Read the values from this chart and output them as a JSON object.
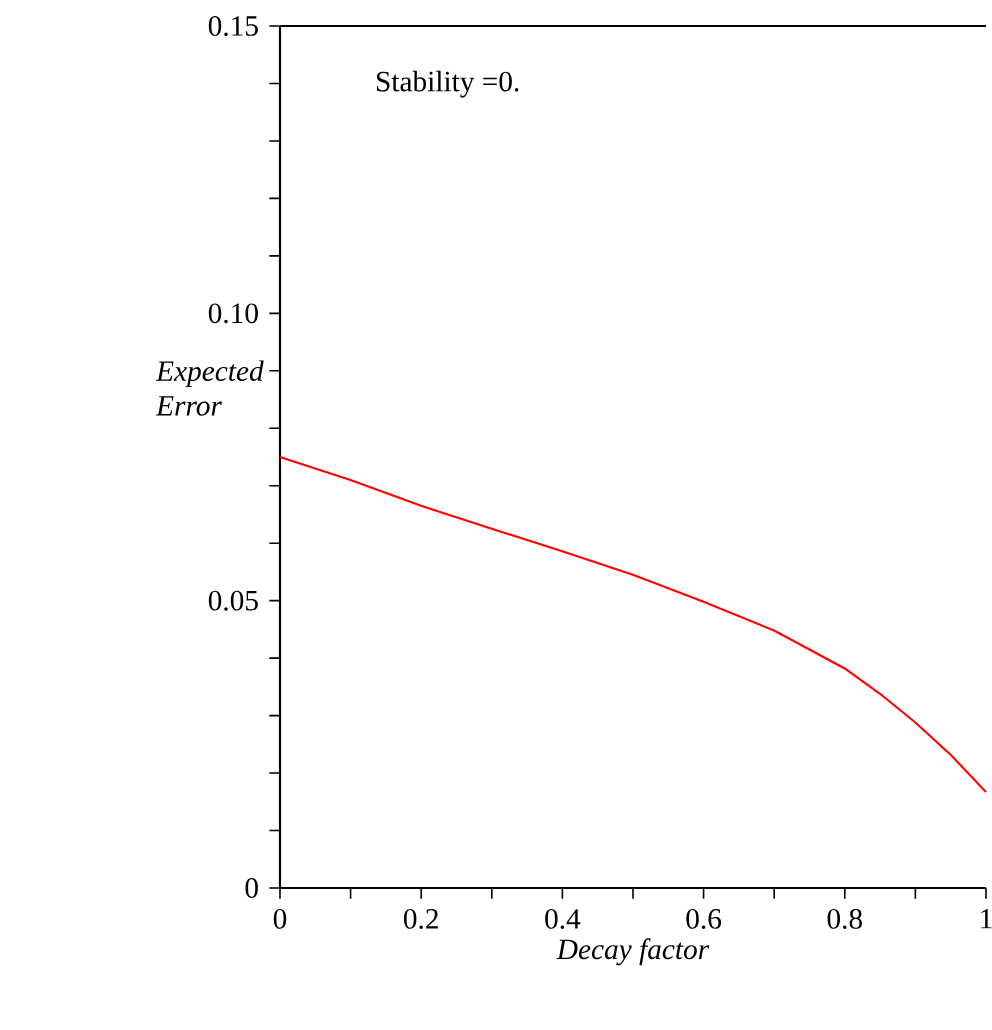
{
  "chart_data": {
    "type": "line",
    "xlabel": "Decay factor",
    "ylabel": "Expected Error",
    "annotations": [
      "Stability =0."
    ],
    "x": [
      0,
      0.1,
      0.2,
      0.3,
      0.4,
      0.5,
      0.6,
      0.7,
      0.8,
      0.85,
      0.9,
      0.95,
      1
    ],
    "series": [
      {
        "color": "#ff0000",
        "values": [
          0.075,
          0.071,
          0.0665,
          0.0625,
          0.0586,
          0.0545,
          0.0498,
          0.0448,
          0.0382,
          0.0338,
          0.0288,
          0.0232,
          0.0167
        ]
      }
    ],
    "xlim": [
      0,
      1
    ],
    "ylim": [
      0,
      0.15
    ],
    "xticks": [
      0,
      {
        "value": 0.1,
        "label": null
      },
      0.2,
      {
        "value": 0.3,
        "label": null
      },
      0.4,
      {
        "value": 0.5,
        "label": null
      },
      0.6,
      {
        "value": 0.7,
        "label": null
      },
      0.8,
      {
        "value": 0.9,
        "label": null
      },
      1
    ],
    "yticks": [
      0,
      {
        "value": 0.01,
        "label": null
      },
      {
        "value": 0.02,
        "label": null
      },
      {
        "value": 0.03,
        "label": null
      },
      {
        "value": 0.04,
        "label": null
      },
      0.05,
      {
        "value": 0.06,
        "label": null
      },
      {
        "value": 0.07,
        "label": null
      },
      {
        "value": 0.08,
        "label": null
      },
      {
        "value": 0.09,
        "label": null
      },
      {
        "value": 0.1,
        "label": "0.10"
      },
      {
        "value": 0.11,
        "label": null
      },
      {
        "value": 0.12,
        "label": null
      },
      {
        "value": 0.13,
        "label": null
      },
      {
        "value": 0.14,
        "label": null
      },
      0.15
    ],
    "grid": false,
    "marker": "none",
    "line_style": "solid"
  }
}
